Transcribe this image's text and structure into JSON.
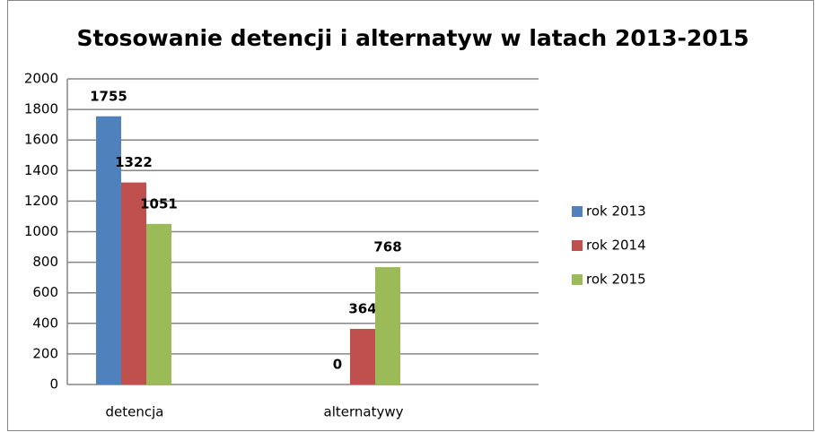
{
  "chart_data": {
    "type": "bar",
    "title": "Stosowanie detencji i alternatyw w latach 2013-2015",
    "categories": [
      "detencja",
      "alternatywy"
    ],
    "series": [
      {
        "name": "rok 2013",
        "color": "#4f81bd",
        "values": [
          1755,
          0
        ]
      },
      {
        "name": "rok 2014",
        "color": "#c0504d",
        "values": [
          1322,
          364
        ]
      },
      {
        "name": "rok 2015",
        "color": "#9bbb59",
        "values": [
          1051,
          768
        ]
      }
    ],
    "ylim": [
      0,
      2000
    ],
    "yticks": [
      0,
      200,
      400,
      600,
      800,
      1000,
      1200,
      1400,
      1600,
      1800,
      2000
    ],
    "grid": true,
    "legend": "right"
  }
}
